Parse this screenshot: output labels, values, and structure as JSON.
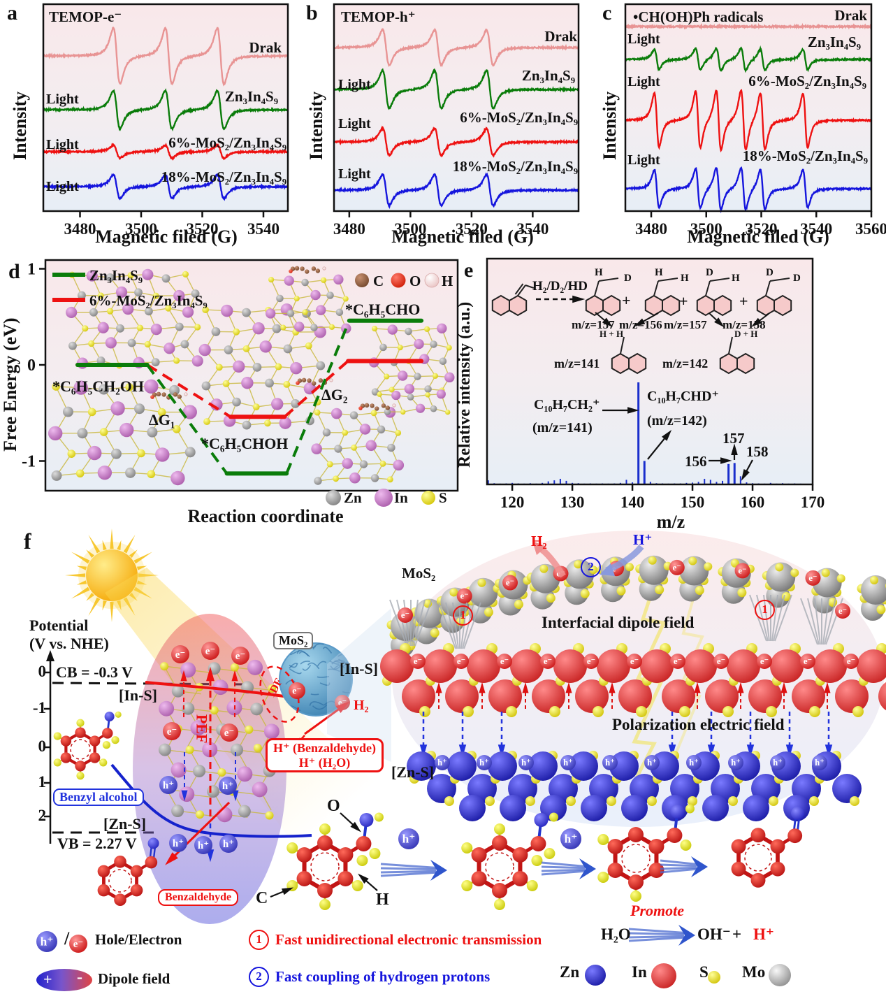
{
  "panels": {
    "a": {
      "tag": "a",
      "title": "TEMOP-e⁻",
      "ylabel": "Intensity",
      "xlabel": "Magnetic filed (G)",
      "light": "Light",
      "curve_labels": [
        "Drak",
        "Zn₃In₄S₉",
        "6%-MoS₂/Zn₃In₄S₉",
        "18%-MoS₂/Zn₃In₄S₉"
      ]
    },
    "b": {
      "tag": "b",
      "title": "TEMOP-h⁺",
      "ylabel": "Intensity",
      "xlabel": "Magnetic filed (G)",
      "light": "Light",
      "curve_labels": [
        "Drak",
        "Zn₃In₄S₉",
        "6%-MoS₂/Zn₃In₄S₉",
        "18%-MoS₂/Zn₃In₄S₉"
      ]
    },
    "c": {
      "tag": "c",
      "title": "•CH(OH)Ph radicals",
      "ylabel": "Intensity",
      "xlabel": "Magnetic filed (G)",
      "light": "Light",
      "curve_labels": [
        "Drak",
        "Zn₃In₄S₉",
        "6%-MoS₂/Zn₃In₄S₉",
        "18%-MoS₂/Zn₃In₄S₉"
      ]
    },
    "d": {
      "tag": "d",
      "ylabel": "Free Energy (eV)",
      "xlabel": "Reaction coordinate",
      "legend": [
        "Zn₃In₄S₉",
        "6%-MoS₂/Zn₃In₄S₉"
      ],
      "state_reactant": "*C₆H₅CH₂OH",
      "dg1": "ΔG₁",
      "state_intermediate": "*C₆H₅CHOH",
      "dg2": "ΔG₂",
      "state_product": "*C₆H₅CHO",
      "atom_c": "C",
      "atom_o": "O",
      "atom_h": "H",
      "atom_zn": "Zn",
      "atom_in": "In",
      "atom_s": "S"
    },
    "e": {
      "tag": "e",
      "ylabel": "Relative intensity (a.u.)",
      "xlabel": "m/z",
      "arrow_label": "H₂/D₂/HD",
      "plus": "+",
      "mz_p1": "m/z=157",
      "mz_p2": "m/z=156",
      "mz_p3": "m/z=157",
      "mz_p4": "m/z=158",
      "hd1a": "H",
      "hd1b": "D",
      "hd2a": "H",
      "hd2b": "H",
      "hd3a": "D",
      "hd3b": "H",
      "hd4a": "D",
      "hd4b": "D",
      "frag1_atoms": "H + H",
      "frag2_atoms": "D + H",
      "mz_f1": "m/z=141",
      "mz_f2": "m/z=142",
      "ann141_formula": "C₁₀H₇CH₂⁺",
      "ann141_mz": "(m/z=141)",
      "ann142_formula": "C₁₀H₇CHD⁺",
      "ann142_mz": "(m/z=142)",
      "ann156": "156",
      "ann157": "157",
      "ann158": "158"
    },
    "f": {
      "tag": "f",
      "potential1": "Potential",
      "potential2": "(V vs. NHE)",
      "ticks": [
        "0",
        "-1",
        "0",
        "1",
        "2"
      ],
      "cb": "CB = -0.3 V",
      "ins_left": "[In-S]",
      "zns_left": "[Zn-S]",
      "vb": "VB = 2.27 V",
      "benzyl_alcohol": "Benzyl alcohol",
      "benzaldehyde": "Benzaldehyde",
      "pef": "PEF",
      "idf": "IDF",
      "mos2_box": "MoS₂",
      "mos2": "MoS₂",
      "h2_out": "H₂",
      "hbox1": "H⁺ (Benzaldehyde)",
      "hbox2": "H⁺ (H₂O)",
      "ins_right": "[In-S]",
      "zns_right": "[Zn-S]",
      "h2_top": "H₂",
      "hplus_top": "H⁺",
      "num1": "1",
      "num2": "2",
      "interfacial": "Interfacial dipole field",
      "polarization": "Polarization electric field",
      "o": "O",
      "c": "C",
      "h": "H",
      "promote": "Promote",
      "h2o": "H₂O",
      "oh": "OH⁻",
      "plus": "+",
      "hplus": "H⁺",
      "e_sym": "e⁻",
      "h_sym": "h⁺",
      "slash": "/",
      "hole_electron": "Hole/Electron",
      "dipole_field": "Dipole field",
      "dip_plus": "+",
      "dip_minus": "-",
      "note1": "Fast unidirectional electronic transmission",
      "note2": "Fast coupling of hydrogen protons",
      "leg_zn": "Zn",
      "leg_in": "In",
      "leg_s": "S",
      "leg_mo": "Mo"
    }
  },
  "chart_data": [
    {
      "type": "line",
      "panel": "a",
      "title": "TEMOP-e⁻",
      "xlabel": "Magnetic filed (G)",
      "ylabel": "Intensity",
      "xlim": [
        3468,
        3548
      ],
      "xticks": [
        3480,
        3500,
        3520,
        3540
      ],
      "peak_width_G": 1.9,
      "series": [
        {
          "name": "Drak",
          "color": "#e89494",
          "amp": 1.0,
          "peaks": [
            {
              "g": 3492,
              "a": 1
            },
            {
              "g": 3509,
              "a": 1
            },
            {
              "g": 3526,
              "a": 1
            }
          ]
        },
        {
          "name": "Zn₃In₄S₉",
          "color": "#0a7c0a",
          "amp": 0.68,
          "peaks": [
            {
              "g": 3492,
              "a": 1
            },
            {
              "g": 3509,
              "a": 1
            },
            {
              "g": 3526,
              "a": 1
            }
          ]
        },
        {
          "name": "6%-MoS₂/Zn₃In₄S₉",
          "color": "#ee1111",
          "amp": 0.23,
          "peaks": [
            {
              "g": 3492,
              "a": 1
            },
            {
              "g": 3509,
              "a": 1
            },
            {
              "g": 3526,
              "a": 1
            }
          ]
        },
        {
          "name": "18%-MoS₂/Zn₃In₄S₉",
          "color": "#1515dd",
          "amp": 0.42,
          "peaks": [
            {
              "g": 3492,
              "a": 1
            },
            {
              "g": 3509,
              "a": 1
            },
            {
              "g": 3526,
              "a": 1
            }
          ]
        }
      ]
    },
    {
      "type": "line",
      "panel": "b",
      "title": "TEMOP-h⁺",
      "xlabel": "Magnetic filed (G)",
      "ylabel": "Intensity",
      "xlim": [
        3475,
        3555
      ],
      "xticks": [
        3480,
        3500,
        3520,
        3540
      ],
      "peak_width_G": 1.9,
      "series": [
        {
          "name": "Drak",
          "color": "#e89494",
          "amp": 0.63,
          "peaks": [
            {
              "g": 3492,
              "a": 1
            },
            {
              "g": 3509,
              "a": 1
            },
            {
              "g": 3526,
              "a": 1
            }
          ]
        },
        {
          "name": "Zn₃In₄S₉",
          "color": "#0a7c0a",
          "amp": 0.68,
          "peaks": [
            {
              "g": 3492,
              "a": 1
            },
            {
              "g": 3509,
              "a": 1
            },
            {
              "g": 3526,
              "a": 1
            }
          ]
        },
        {
          "name": "6%-MoS₂/Zn₃In₄S₉",
          "color": "#ee1111",
          "amp": 0.48,
          "peaks": [
            {
              "g": 3492,
              "a": 1
            },
            {
              "g": 3509,
              "a": 1
            },
            {
              "g": 3526,
              "a": 1
            }
          ]
        },
        {
          "name": "18%-MoS₂/Zn₃In₄S₉",
          "color": "#1515dd",
          "amp": 0.55,
          "peaks": [
            {
              "g": 3492,
              "a": 1
            },
            {
              "g": 3509,
              "a": 1
            },
            {
              "g": 3526,
              "a": 1
            }
          ]
        }
      ]
    },
    {
      "type": "line",
      "panel": "c",
      "title": "•CH(OH)Ph radicals",
      "xlabel": "Magnetic filed (G)",
      "ylabel": "Intensity",
      "xlim": [
        3470.6,
        3560
      ],
      "xticks": [
        3480,
        3500,
        3520,
        3540,
        3560
      ],
      "peak_width_G": 1.5,
      "series": [
        {
          "name": "Drak",
          "color": "#e89494",
          "amp": 0.0,
          "peaks": []
        },
        {
          "name": "Zn₃In₄S₉",
          "color": "#0a7c0a",
          "amp": 0.37,
          "peaks": [
            {
              "g": 3482,
              "a": 0.9
            },
            {
              "g": 3497,
              "a": 0.95
            },
            {
              "g": 3504.5,
              "a": 1
            },
            {
              "g": 3513.5,
              "a": 1
            },
            {
              "g": 3520.5,
              "a": 0.95
            },
            {
              "g": 3536,
              "a": 0.9
            }
          ]
        },
        {
          "name": "6%-MoS₂/Zn₃In₄S₉",
          "color": "#ee1111",
          "amp": 1.0,
          "peaks": [
            {
              "g": 3482,
              "a": 0.9
            },
            {
              "g": 3497,
              "a": 0.95
            },
            {
              "g": 3504.5,
              "a": 1
            },
            {
              "g": 3513.5,
              "a": 1
            },
            {
              "g": 3520.5,
              "a": 0.95
            },
            {
              "g": 3536,
              "a": 0.9
            }
          ]
        },
        {
          "name": "18%-MoS₂/Zn₃In₄S₉",
          "color": "#1515dd",
          "amp": 0.7,
          "peaks": [
            {
              "g": 3482,
              "a": 0.9
            },
            {
              "g": 3497,
              "a": 0.95
            },
            {
              "g": 3504.5,
              "a": 1
            },
            {
              "g": 3513.5,
              "a": 1
            },
            {
              "g": 3520.5,
              "a": 0.95
            },
            {
              "g": 3536,
              "a": 0.9
            }
          ]
        }
      ]
    },
    {
      "type": "line",
      "panel": "d",
      "subtype": "energy_diagram",
      "ylabel": "Free Energy (eV)",
      "xlabel": "Reaction coordinate",
      "ylim": [
        -1.4,
        1
      ],
      "yticks": [
        1,
        0,
        -1
      ],
      "series": [
        {
          "name": "Zn₃In₄S₉",
          "color": "#0a7c0a",
          "levels": [
            {
              "state": "*C₆H₅CH₂OH",
              "x": [
                0.078,
                0.247
              ],
              "energy_eV": 0
            },
            {
              "state": "*C₆H₅CHOH",
              "x": [
                0.44,
                0.585
              ],
              "energy_eV": -1.13
            },
            {
              "state": "*C₆H₅CHO",
              "x": [
                0.737,
                0.912
              ],
              "energy_eV": 0.46
            }
          ]
        },
        {
          "name": "6%-MoS₂/Zn₃In₄S₉",
          "color": "#ee1111",
          "levels": [
            {
              "state": "*C₆H₅CH₂OH",
              "x": [
                0.078,
                0.247
              ],
              "energy_eV": 0
            },
            {
              "state": "*C₆H₅CHOH",
              "x": [
                0.449,
                0.58
              ],
              "energy_eV": -0.54
            },
            {
              "state": "*C₆H₅CHO",
              "x": [
                0.734,
                0.912
              ],
              "energy_eV": 0.04
            }
          ]
        }
      ]
    },
    {
      "type": "bar",
      "panel": "e",
      "xlabel": "m/z",
      "ylabel": "Relative intensity (a.u.)",
      "xlim": [
        115.8,
        170
      ],
      "xticks": [
        120,
        130,
        140,
        150,
        160,
        170
      ],
      "peaks": [
        [
          116,
          4
        ],
        [
          117,
          1.2
        ],
        [
          118,
          0.8
        ],
        [
          119,
          1
        ],
        [
          120,
          1.5
        ],
        [
          121,
          1
        ],
        [
          122,
          0.8
        ],
        [
          123,
          1.2
        ],
        [
          124,
          0.8
        ],
        [
          125,
          1.5
        ],
        [
          126,
          3
        ],
        [
          127,
          4
        ],
        [
          128,
          5.5
        ],
        [
          129,
          3.5
        ],
        [
          130,
          1.5
        ],
        [
          131,
          1.2
        ],
        [
          132,
          0.8
        ],
        [
          133,
          1
        ],
        [
          134,
          0.8
        ],
        [
          135,
          1
        ],
        [
          136,
          0.8
        ],
        [
          137,
          1
        ],
        [
          138,
          1.5
        ],
        [
          139,
          4.5
        ],
        [
          140,
          2
        ],
        [
          141,
          100
        ],
        [
          142,
          23
        ],
        [
          143,
          2.5
        ],
        [
          144,
          1.2
        ],
        [
          145,
          1
        ],
        [
          146,
          0.8
        ],
        [
          147,
          1
        ],
        [
          148,
          1
        ],
        [
          149,
          1.5
        ],
        [
          150,
          1.8
        ],
        [
          151,
          2.5
        ],
        [
          152,
          5.5
        ],
        [
          153,
          4.5
        ],
        [
          154,
          2.5
        ],
        [
          155,
          3.5
        ],
        [
          156,
          20
        ],
        [
          157,
          21
        ],
        [
          158,
          8
        ],
        [
          159,
          2
        ],
        [
          160,
          1.2
        ],
        [
          161,
          1
        ],
        [
          162,
          0.8
        ],
        [
          163,
          1.5
        ],
        [
          164,
          0.8
        ],
        [
          165,
          1.2
        ],
        [
          166,
          0.8
        ],
        [
          167,
          1
        ],
        [
          168,
          0.8
        ]
      ],
      "annotated_peaks": {
        "141": "C₁₀H₇CH₂⁺",
        "142": "C₁₀H₇CHD⁺",
        "156": "156",
        "157": "157",
        "158": "158"
      }
    }
  ]
}
